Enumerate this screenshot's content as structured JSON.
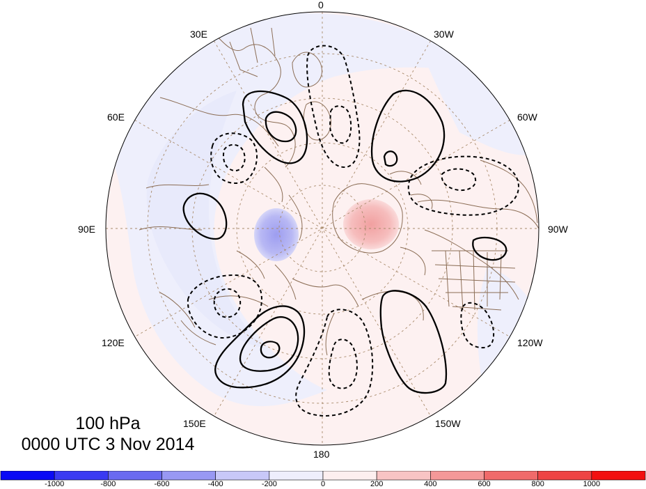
{
  "map": {
    "projection": "north-polar-stereographic",
    "field_shading": "anomaly",
    "contours": "solid positive / dashed negative",
    "longitude_labels": [
      "0",
      "30W",
      "60W",
      "90W",
      "120W",
      "150W",
      "180",
      "150E",
      "120E",
      "90E",
      "60E",
      "30E"
    ]
  },
  "title": {
    "level": "100 hPa",
    "datetime": "0000 UTC 3 Nov 2014"
  },
  "colorbar": {
    "ticks": [
      "-1000",
      "-800",
      "-600",
      "-400",
      "-200",
      "0",
      "200",
      "400",
      "600",
      "800",
      "1000"
    ],
    "colors": [
      "#0a0af5",
      "#3a3af2",
      "#6a6af0",
      "#9898f3",
      "#c8c8f8",
      "#eeeefc",
      "#fdefef",
      "#f8c4c4",
      "#f49898",
      "#f06a6a",
      "#ee4444",
      "#f21010"
    ]
  },
  "colors": {
    "coastline": "#8b6d55",
    "graticule": "#a88a6a",
    "contour": "#000000",
    "positive_bg": "#fdf1f1",
    "negative_bg": "#eeeffc"
  }
}
